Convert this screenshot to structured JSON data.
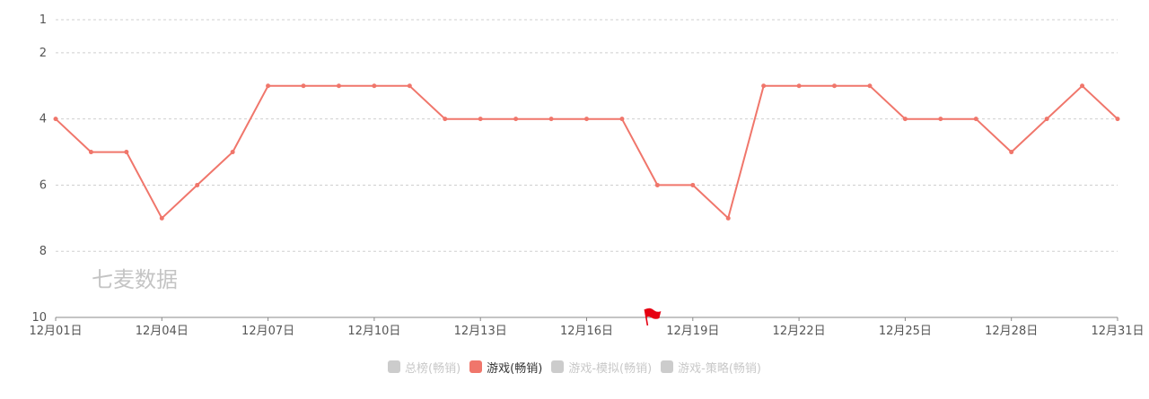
{
  "watermark": "七麦数据",
  "legend": [
    {
      "label": "总榜(畅销)",
      "active": false,
      "color": "#cccccc"
    },
    {
      "label": "游戏(畅销)",
      "active": true,
      "color": "#f0766b"
    },
    {
      "label": "游戏-模拟(畅销)",
      "active": false,
      "color": "#cccccc"
    },
    {
      "label": "游戏-策略(畅销)",
      "active": false,
      "color": "#cccccc"
    }
  ],
  "chart_data": {
    "type": "line",
    "title": "",
    "xlabel": "",
    "ylabel": "",
    "y_inverted": true,
    "ylim": [
      1,
      10
    ],
    "yticks": [
      1,
      2,
      4,
      6,
      8,
      10
    ],
    "grid": true,
    "legend_position": "bottom",
    "x": [
      "12月01日",
      "12月02日",
      "12月03日",
      "12月04日",
      "12月05日",
      "12月06日",
      "12月07日",
      "12月08日",
      "12月09日",
      "12月10日",
      "12月11日",
      "12月12日",
      "12月13日",
      "12月14日",
      "12月15日",
      "12月16日",
      "12月17日",
      "12月18日",
      "12月19日",
      "12月20日",
      "12月21日",
      "12月22日",
      "12月23日",
      "12月24日",
      "12月25日",
      "12月26日",
      "12月27日",
      "12月28日",
      "12月29日",
      "12月30日",
      "12月31日"
    ],
    "xtick_labels": [
      "12月01日",
      "12月04日",
      "12月07日",
      "12月10日",
      "12月13日",
      "12月16日",
      "12月19日",
      "12月22日",
      "12月25日",
      "12月28日",
      "12月31日"
    ],
    "series": [
      {
        "name": "游戏(畅销)",
        "color": "#f0766b",
        "values": [
          4,
          5,
          5,
          7,
          6,
          5,
          3,
          3,
          3,
          3,
          3,
          4,
          4,
          4,
          4,
          4,
          4,
          6,
          6,
          7,
          3,
          3,
          3,
          3,
          4,
          4,
          4,
          5,
          4,
          3,
          4
        ]
      }
    ],
    "flag_marker": {
      "x": "12月18日",
      "color": "#e60012",
      "icon": "flag-icon"
    }
  }
}
